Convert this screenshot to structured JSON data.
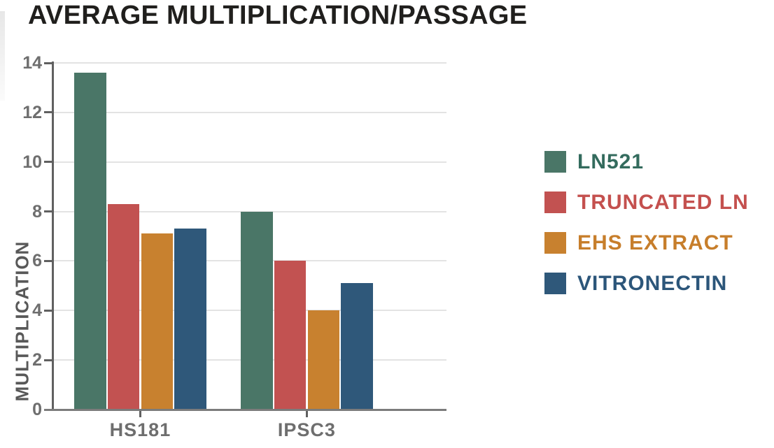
{
  "page": {
    "background": "#ffffff"
  },
  "chart_data": {
    "type": "bar",
    "title": "AVERAGE MULTIPLICATION/PASSAGE",
    "xlabel": "",
    "ylabel": "MULTIPLICATION",
    "categories": [
      "HS181",
      "IPSC3"
    ],
    "series": [
      {
        "name": "LN521",
        "values": [
          13.6,
          8.0
        ],
        "color": "#4A7667",
        "label_color": "#336B5D"
      },
      {
        "name": "TRUNCATED LN",
        "values": [
          8.3,
          6.0
        ],
        "color": "#C25251",
        "label_color": "#C4504E"
      },
      {
        "name": "EHS EXTRACT",
        "values": [
          7.1,
          4.0
        ],
        "color": "#C8812F",
        "label_color": "#C77E2B"
      },
      {
        "name": "VITRONECTIN",
        "values": [
          7.3,
          5.1
        ],
        "color": "#2F587A",
        "label_color": "#2C567A"
      }
    ],
    "ylim": [
      0,
      14
    ],
    "yticks": [
      0,
      2,
      4,
      6,
      8,
      10,
      12,
      14
    ],
    "grid": true,
    "legend_position": "right"
  },
  "colors": {
    "title": "#201F1D",
    "axis": "#606060",
    "baseline": "#7C7C7C",
    "gridline": "#E3E3E3",
    "tick_labels": "#6E6E6E"
  }
}
